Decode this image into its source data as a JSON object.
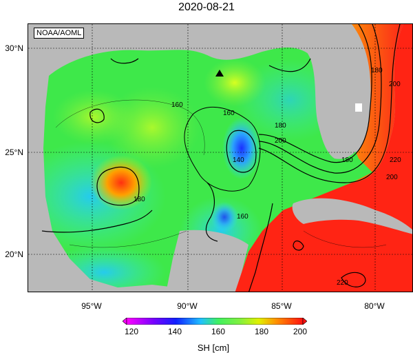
{
  "title": "2020-08-21",
  "credit": "NOAA/AOML",
  "colors": {
    "land": "#b9b9b9",
    "ocean_low": "#35e0ff",
    "ocean_mid": "#4cf04a",
    "ocean_high": "#ff2b1a",
    "contour": "#000000"
  },
  "axes": {
    "lat_labels": [
      "30°N",
      "25°N",
      "20°N"
    ],
    "lon_labels": [
      "95°W",
      "90°W",
      "85°W",
      "80°W"
    ]
  },
  "contour_labels": [
    "160",
    "160",
    "180",
    "180",
    "200",
    "140",
    "180",
    "200",
    "160",
    "180",
    "200",
    "220",
    "220"
  ],
  "marker": {
    "type": "triangle",
    "symbol": "▲"
  },
  "colorbar": {
    "title": "SH [cm]",
    "ticks": [
      "120",
      "140",
      "160",
      "180",
      "200"
    ],
    "min": 120,
    "max": 200
  }
}
